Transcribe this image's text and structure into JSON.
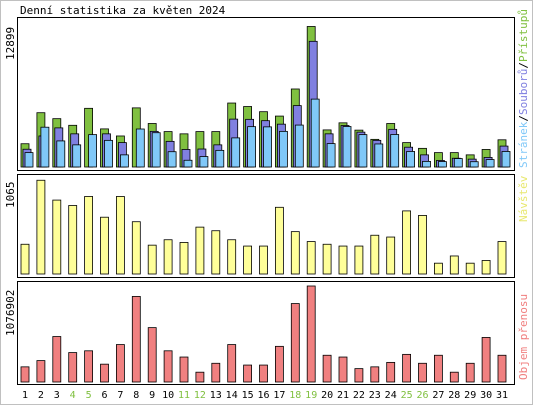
{
  "title": "Denní statistika za květen 2024",
  "colors": {
    "background": "#ffffff",
    "border": "#000000",
    "pages": "#80c040",
    "files": "#8080e0",
    "hits": "#80c8f8",
    "visits": "#ffff99",
    "traffic": "#f08080",
    "weekend_label": "#80c040",
    "weekday_label": "#000000"
  },
  "chart_data": [
    {
      "type": "bar",
      "panel": "top",
      "ymax_label": "12899",
      "ymax": 12899,
      "legend": [
        {
          "text": "Stránek",
          "color": "#80c8f8"
        },
        {
          "text": "/",
          "color": "#000000"
        },
        {
          "text": "Souborů",
          "color": "#8080e0"
        },
        {
          "text": "/",
          "color": "#000000"
        },
        {
          "text": "Přístupů",
          "color": "#80c040"
        }
      ],
      "categories": [
        "1",
        "2",
        "3",
        "4",
        "5",
        "6",
        "7",
        "8",
        "9",
        "10",
        "11",
        "12",
        "13",
        "14",
        "15",
        "16",
        "17",
        "18",
        "19",
        "20",
        "21",
        "22",
        "23",
        "24",
        "25",
        "26",
        "27",
        "28",
        "29",
        "30",
        "31"
      ],
      "series": [
        {
          "name": "Přístupů",
          "color": "#80c040",
          "values": [
            2070,
            4830,
            4300,
            3710,
            5220,
            3390,
            2760,
            5260,
            3870,
            3150,
            2950,
            3150,
            3150,
            5690,
            5380,
            4920,
            4530,
            6940,
            12500,
            3300,
            3930,
            3280,
            2460,
            3870,
            2170,
            1660,
            1280,
            1280,
            1080,
            1560,
            2420
          ]
        },
        {
          "name": "Souborů",
          "color": "#8080e0",
          "values": [
            1580,
            2760,
            3480,
            2950,
            0,
            2950,
            2170,
            0,
            3170,
            2280,
            1560,
            1600,
            1970,
            4260,
            4240,
            4120,
            3810,
            5460,
            11180,
            2950,
            3690,
            3100,
            2370,
            3350,
            1760,
            1080,
            580,
            780,
            700,
            850,
            1860
          ]
        },
        {
          "name": "Stránek",
          "color": "#80c8f8",
          "values": [
            1280,
            3540,
            2320,
            1970,
            2880,
            2370,
            1080,
            3380,
            3050,
            1360,
            600,
            930,
            1480,
            2590,
            3590,
            3570,
            3170,
            3730,
            6040,
            2080,
            3600,
            2880,
            2050,
            2890,
            1380,
            500,
            480,
            750,
            470,
            660,
            1380
          ]
        }
      ]
    },
    {
      "type": "bar",
      "panel": "middle",
      "ymax_label": "1065",
      "ymax": 1065,
      "legend": [
        {
          "text": "Návštěv",
          "color": "#ffff99"
        }
      ],
      "categories": [
        "1",
        "2",
        "3",
        "4",
        "5",
        "6",
        "7",
        "8",
        "9",
        "10",
        "11",
        "12",
        "13",
        "14",
        "15",
        "16",
        "17",
        "18",
        "19",
        "20",
        "21",
        "22",
        "23",
        "24",
        "25",
        "26",
        "27",
        "28",
        "29",
        "30",
        "31"
      ],
      "series": [
        {
          "name": "Návštěv",
          "color": "#ffff99",
          "values": [
            330,
            1040,
            820,
            760,
            860,
            630,
            860,
            580,
            320,
            380,
            350,
            520,
            480,
            380,
            310,
            310,
            740,
            470,
            360,
            330,
            310,
            310,
            430,
            410,
            700,
            650,
            120,
            200,
            120,
            150,
            360
          ]
        }
      ]
    },
    {
      "type": "bar",
      "panel": "bottom",
      "ymax_label": "1076902",
      "ymax": 1076902,
      "legend": [
        {
          "text": "Objem přenosu",
          "color": "#f08080"
        }
      ],
      "categories": [
        "1",
        "2",
        "3",
        "4",
        "5",
        "6",
        "7",
        "8",
        "9",
        "10",
        "11",
        "12",
        "13",
        "14",
        "15",
        "16",
        "17",
        "18",
        "19",
        "20",
        "21",
        "22",
        "23",
        "24",
        "25",
        "26",
        "27",
        "28",
        "29",
        "30",
        "31"
      ],
      "series": [
        {
          "name": "Objem přenosu",
          "color": "#f08080",
          "values": [
            170000,
            240000,
            510000,
            330000,
            350000,
            200000,
            420000,
            960000,
            610000,
            350000,
            280000,
            110000,
            210000,
            420000,
            190000,
            190000,
            400000,
            880000,
            1076902,
            300000,
            280000,
            150000,
            170000,
            220000,
            310000,
            210000,
            300000,
            110000,
            210000,
            500000,
            300000
          ]
        }
      ]
    }
  ],
  "day_labels": [
    "1",
    "2",
    "3",
    "4",
    "5",
    "6",
    "7",
    "8",
    "9",
    "10",
    "11",
    "12",
    "13",
    "14",
    "15",
    "16",
    "17",
    "18",
    "19",
    "20",
    "21",
    "22",
    "23",
    "24",
    "25",
    "26",
    "27",
    "28",
    "29",
    "30",
    "31"
  ],
  "weekend_days": [
    "4",
    "5",
    "11",
    "12",
    "18",
    "19",
    "25",
    "26"
  ]
}
